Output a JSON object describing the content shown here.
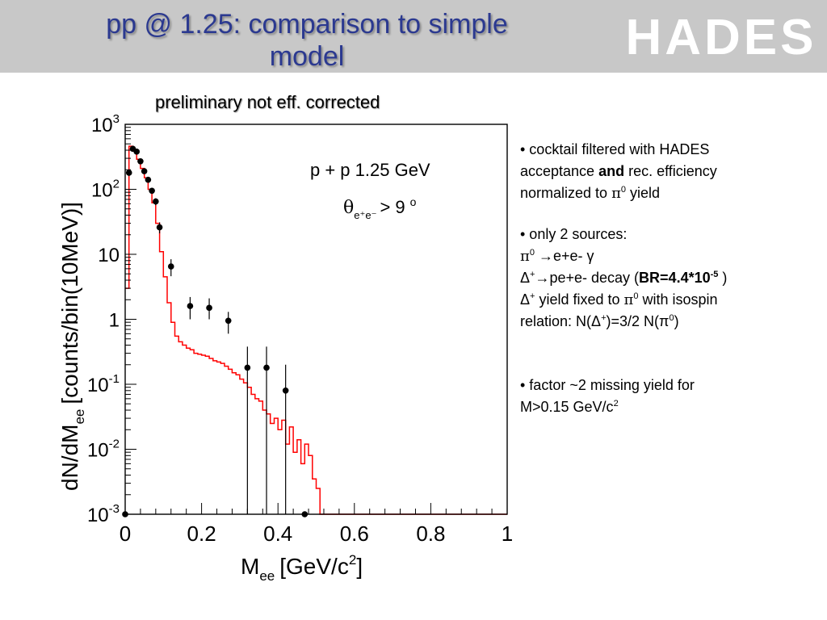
{
  "header": {
    "title_line1": "pp @ 1.25: comparison to simple",
    "title_line2": "model",
    "logo_text": "HADES",
    "title_color": "#2b3990",
    "band_color": "#c8c8c8"
  },
  "subtitle": "preliminary not eff. corrected",
  "chart_data": {
    "type": "scatter",
    "inset_text": "p + p  1.25 GeV",
    "cut_symbol": "θ",
    "cut_subscript": "e⁺e⁻",
    "cut_relation": "> 9",
    "cut_unit": "o",
    "xlabel_main": "M",
    "xlabel_sub": "ee",
    "xlabel_rest": "[GeV/c",
    "xlabel_sup": "2",
    "xlabel_close": "]",
    "ylabel_main": "dN/dM",
    "ylabel_sub": "ee",
    "ylabel_rest": "[counts/bin(10MeV)]",
    "xlim": [
      0,
      1
    ],
    "ylim": [
      0.001,
      1000
    ],
    "y_scale": "log",
    "x_ticks": [
      {
        "v": 0,
        "label": "0"
      },
      {
        "v": 0.2,
        "label": "0.2"
      },
      {
        "v": 0.4,
        "label": "0.4"
      },
      {
        "v": 0.6,
        "label": "0.6"
      },
      {
        "v": 0.8,
        "label": "0.8"
      },
      {
        "v": 1,
        "label": "1"
      }
    ],
    "y_ticks": [
      {
        "v": 0.001,
        "base": "10",
        "exp": "-3"
      },
      {
        "v": 0.01,
        "base": "10",
        "exp": "-2"
      },
      {
        "v": 0.1,
        "base": "10",
        "exp": "-1"
      },
      {
        "v": 1,
        "base": "1",
        "exp": ""
      },
      {
        "v": 10,
        "base": "10",
        "exp": ""
      },
      {
        "v": 100,
        "base": "10",
        "exp": "2"
      },
      {
        "v": 1000,
        "base": "10",
        "exp": "3"
      }
    ],
    "data_points": [
      {
        "x": 0.0,
        "y": 0.001,
        "ylo": 0.001,
        "yhi": 0.001
      },
      {
        "x": 0.01,
        "y": 180,
        "ylo": 160,
        "yhi": 200
      },
      {
        "x": 0.02,
        "y": 420,
        "ylo": 390,
        "yhi": 450
      },
      {
        "x": 0.03,
        "y": 380,
        "ylo": 350,
        "yhi": 410
      },
      {
        "x": 0.04,
        "y": 270,
        "ylo": 248,
        "yhi": 292
      },
      {
        "x": 0.05,
        "y": 190,
        "ylo": 174,
        "yhi": 206
      },
      {
        "x": 0.06,
        "y": 140,
        "ylo": 127,
        "yhi": 153
      },
      {
        "x": 0.07,
        "y": 95,
        "ylo": 85,
        "yhi": 105
      },
      {
        "x": 0.08,
        "y": 65,
        "ylo": 57,
        "yhi": 73
      },
      {
        "x": 0.09,
        "y": 26,
        "ylo": 21,
        "yhi": 31
      },
      {
        "x": 0.12,
        "y": 6.5,
        "ylo": 4.6,
        "yhi": 8.4
      },
      {
        "x": 0.17,
        "y": 1.6,
        "ylo": 1.0,
        "yhi": 2.2
      },
      {
        "x": 0.22,
        "y": 1.5,
        "ylo": 1.0,
        "yhi": 2.1
      },
      {
        "x": 0.27,
        "y": 0.95,
        "ylo": 0.6,
        "yhi": 1.3
      },
      {
        "x": 0.32,
        "y": 0.18,
        "ylo": 0.001,
        "yhi": 0.38
      },
      {
        "x": 0.37,
        "y": 0.18,
        "ylo": 0.001,
        "yhi": 0.38
      },
      {
        "x": 0.42,
        "y": 0.08,
        "ylo": 0.001,
        "yhi": 0.2
      },
      {
        "x": 0.47,
        "y": 0.001,
        "ylo": 0.001,
        "yhi": 0.001
      }
    ],
    "simulation": {
      "color": "#ff0000",
      "edges": [
        0.0,
        0.01,
        0.02,
        0.03,
        0.04,
        0.05,
        0.06,
        0.07,
        0.08,
        0.09,
        0.1,
        0.11,
        0.12,
        0.13,
        0.14,
        0.15,
        0.16,
        0.17,
        0.18,
        0.19,
        0.2,
        0.21,
        0.22,
        0.23,
        0.24,
        0.25,
        0.26,
        0.27,
        0.28,
        0.29,
        0.3,
        0.31,
        0.32,
        0.33,
        0.34,
        0.35,
        0.36,
        0.37,
        0.38,
        0.39,
        0.4,
        0.41,
        0.42,
        0.43,
        0.44,
        0.45,
        0.46,
        0.47,
        0.48,
        0.49,
        0.5,
        0.51,
        1.0
      ],
      "values": [
        3,
        460,
        400,
        290,
        210,
        150,
        100,
        62,
        30,
        11,
        4.5,
        1.8,
        0.9,
        0.55,
        0.45,
        0.4,
        0.36,
        0.34,
        0.3,
        0.29,
        0.28,
        0.27,
        0.25,
        0.23,
        0.22,
        0.21,
        0.19,
        0.17,
        0.15,
        0.14,
        0.12,
        0.105,
        0.09,
        0.07,
        0.06,
        0.055,
        0.04,
        0.035,
        0.025,
        0.03,
        0.02,
        0.028,
        0.012,
        0.022,
        0.009,
        0.014,
        0.006,
        0.012,
        0.008,
        0.0035,
        0.0025,
        0.001
      ]
    }
  },
  "notes": {
    "b1_l1": "• cocktail filtered with HADES",
    "b1_l2a": "acceptance ",
    "b1_l2b": "and",
    "b1_l2c": " rec. efficiency",
    "b1_l3a": "normalized to ",
    "b1_l3pi": "π",
    "b1_l3sup": "0",
    "b1_l3b": " yield",
    "b2_l1": "•  only 2 sources:",
    "b2_l2a": "π",
    "b2_l2sup": "0",
    "b2_l2b": " →e+e- γ",
    "b2_l3a": "Δ",
    "b2_l3sup": "+",
    "b2_l3b": "→pe+e- decay  (",
    "b2_l3bold": "BR=4.4*10",
    "b2_l3boldsup": "-5",
    "b2_l3c": " )",
    "b2_l4a": "Δ",
    "b2_l4sup": "+",
    "b2_l4b": "  yield fixed to ",
    "b2_l4pi": "π",
    "b2_l4pisup": "0",
    "b2_l4c": " with isospin",
    "b2_l5a": "relation:  N(Δ",
    "b2_l5sup": "+",
    "b2_l5b": ")=3/2 N(π",
    "b2_l5sup2": "0",
    "b2_l5c": ")",
    "b3_l1": "• factor ~2 missing yield for",
    "b3_l2": "M>0.15 GeV/c",
    "b3_l2sup": "2"
  }
}
